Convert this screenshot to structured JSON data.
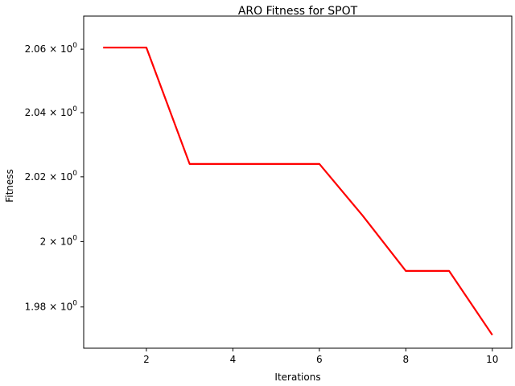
{
  "chart_data": {
    "type": "line",
    "title": "ARO Fitness for SPOT",
    "xlabel": "Iterations",
    "ylabel": "Fitness",
    "y_scale": "log",
    "xlim": [
      0.55,
      10.45
    ],
    "ylim": [
      1.9675,
      2.0705
    ],
    "grid": false,
    "x_ticks": [
      2,
      4,
      6,
      8,
      10
    ],
    "x_tick_labels": [
      "2",
      "4",
      "6",
      "8",
      "10"
    ],
    "y_ticks": [
      1.98,
      2.0,
      2.02,
      2.04,
      2.06
    ],
    "y_tick_labels": [
      {
        "mantissa": "1.98",
        "exp": "0"
      },
      {
        "mantissa": "2",
        "exp": "0"
      },
      {
        "mantissa": "2.02",
        "exp": "0"
      },
      {
        "mantissa": "2.04",
        "exp": "0"
      },
      {
        "mantissa": "2.06",
        "exp": "0"
      }
    ],
    "series": [
      {
        "color": "#ff0000",
        "x": [
          1,
          2,
          3,
          4,
          5,
          6,
          7,
          8,
          9,
          10
        ],
        "values": [
          2.0605,
          2.0605,
          2.024,
          2.024,
          2.024,
          2.024,
          2.008,
          1.991,
          1.991,
          1.9715
        ]
      }
    ]
  }
}
